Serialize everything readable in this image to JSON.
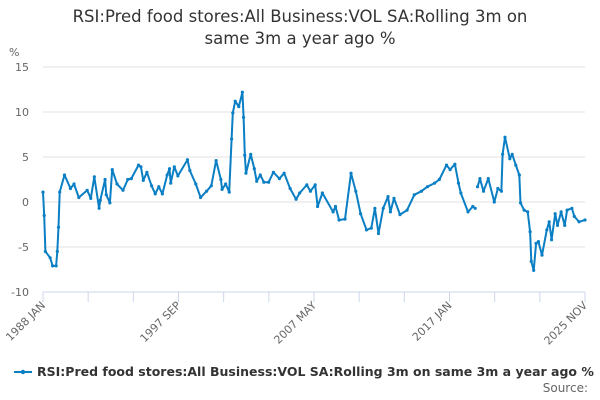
{
  "chart_data": {
    "type": "line",
    "title": "RSI:Pred food stores:All Business:VOL SA:Rolling 3m on same 3m a year ago %",
    "title_lines": [
      "RSI:Pred food stores:All Business:VOL SA:Rolling 3m on",
      "same 3m a year ago %"
    ],
    "ylabel": "%",
    "xlabel": "",
    "ylim": [
      -10,
      15
    ],
    "yticks": [
      -10,
      -5,
      0,
      5,
      10,
      15
    ],
    "xlim": [
      "1988-01",
      "2025-11"
    ],
    "xtick_labels": [
      "1988 JAN",
      "1997 SEP",
      "2007 MAY",
      "2017 JAN",
      "2025 NOV"
    ],
    "grid": true,
    "legend_position": "bottom",
    "color": "#0a7fc4",
    "series": [
      {
        "name": "RSI:Pred food stores:All Business:VOL SA:Rolling 3m on same 3m a year ago %",
        "points": [
          [
            "1988-01",
            1.1
          ],
          [
            "1988-02",
            -1.5
          ],
          [
            "1988-03",
            -5.5
          ],
          [
            "1988-07",
            -6.2
          ],
          [
            "1988-09",
            -7.1
          ],
          [
            "1988-12",
            -7.1
          ],
          [
            "1989-01",
            -5.5
          ],
          [
            "1989-02",
            -2.8
          ],
          [
            "1989-03",
            1.1
          ],
          [
            "1989-07",
            3.0
          ],
          [
            "1989-12",
            1.5
          ],
          [
            "1990-03",
            2.0
          ],
          [
            "1990-07",
            0.5
          ],
          [
            "1991-02",
            1.3
          ],
          [
            "1991-05",
            0.4
          ],
          [
            "1991-08",
            2.8
          ],
          [
            "1991-12",
            -0.7
          ],
          [
            "1992-01",
            0.2
          ],
          [
            "1992-05",
            2.5
          ],
          [
            "1992-06",
            0.8
          ],
          [
            "1992-09",
            -0.1
          ],
          [
            "1992-11",
            3.6
          ],
          [
            "1993-03",
            2.0
          ],
          [
            "1993-08",
            1.3
          ],
          [
            "1993-12",
            2.5
          ],
          [
            "1994-03",
            2.6
          ],
          [
            "1994-09",
            4.1
          ],
          [
            "1994-11",
            3.9
          ],
          [
            "1995-01",
            2.4
          ],
          [
            "1995-04",
            3.3
          ],
          [
            "1995-08",
            1.8
          ],
          [
            "1995-11",
            0.9
          ],
          [
            "1996-02",
            1.7
          ],
          [
            "1996-05",
            0.9
          ],
          [
            "1996-09",
            3.0
          ],
          [
            "1996-11",
            3.7
          ],
          [
            "1996-12",
            2.1
          ],
          [
            "1997-03",
            3.9
          ],
          [
            "1997-06",
            2.9
          ],
          [
            "1998-02",
            4.7
          ],
          [
            "1998-04",
            3.5
          ],
          [
            "1998-09",
            2.0
          ],
          [
            "1999-01",
            0.5
          ],
          [
            "1999-06",
            1.2
          ],
          [
            "1999-10",
            1.8
          ],
          [
            "2000-02",
            4.6
          ],
          [
            "2000-06",
            2.5
          ],
          [
            "2000-07",
            1.4
          ],
          [
            "2000-10",
            2.0
          ],
          [
            "2001-01",
            1.1
          ],
          [
            "2001-03",
            7.0
          ],
          [
            "2001-04",
            9.9
          ],
          [
            "2001-06",
            11.2
          ],
          [
            "2001-09",
            10.6
          ],
          [
            "2001-12",
            12.2
          ],
          [
            "2002-01",
            9.4
          ],
          [
            "2002-02",
            5.2
          ],
          [
            "2002-03",
            3.2
          ],
          [
            "2002-07",
            5.3
          ],
          [
            "2002-10",
            3.7
          ],
          [
            "2002-12",
            2.3
          ],
          [
            "2003-03",
            3.0
          ],
          [
            "2003-06",
            2.2
          ],
          [
            "2003-10",
            2.2
          ],
          [
            "2004-02",
            3.3
          ],
          [
            "2004-07",
            2.6
          ],
          [
            "2004-11",
            3.2
          ],
          [
            "2005-04",
            1.5
          ],
          [
            "2005-09",
            0.3
          ],
          [
            "2005-12",
            1.0
          ],
          [
            "2006-06",
            1.9
          ],
          [
            "2006-09",
            1.2
          ],
          [
            "2007-01",
            1.9
          ],
          [
            "2007-03",
            -0.5
          ],
          [
            "2007-07",
            1.0
          ],
          [
            "2008-04",
            -1.1
          ],
          [
            "2008-06",
            -0.5
          ],
          [
            "2008-09",
            -2.0
          ],
          [
            "2009-02",
            -1.9
          ],
          [
            "2009-07",
            3.2
          ],
          [
            "2009-11",
            1.2
          ],
          [
            "2010-03",
            -1.3
          ],
          [
            "2010-08",
            -3.1
          ],
          [
            "2010-12",
            -2.9
          ],
          [
            "2011-03",
            -0.7
          ],
          [
            "2011-06",
            -3.5
          ],
          [
            "2011-10",
            -0.7
          ],
          [
            "2012-02",
            0.6
          ],
          [
            "2012-04",
            -1.1
          ],
          [
            "2012-07",
            0.4
          ],
          [
            "2012-12",
            -1.4
          ],
          [
            "2013-06",
            -0.9
          ],
          [
            "2013-12",
            0.8
          ],
          [
            "2014-06",
            1.2
          ],
          [
            "2014-11",
            1.7
          ],
          [
            "2015-05",
            2.1
          ],
          [
            "2015-09",
            2.5
          ],
          [
            "2016-03",
            4.1
          ],
          [
            "2016-06",
            3.6
          ],
          [
            "2016-10",
            4.2
          ],
          [
            "2017-01",
            2.1
          ],
          [
            "2017-03",
            1.0
          ],
          [
            "2017-09",
            -1.1
          ],
          [
            "2018-01",
            -0.5
          ],
          [
            "2018-03",
            -0.7
          ],
          [
            "2018-04",
            null
          ],
          [
            "2018-05",
            1.7
          ],
          [
            "2018-07",
            2.6
          ],
          [
            "2018-10",
            1.2
          ],
          [
            "2019-02",
            2.6
          ],
          [
            "2019-07",
            0.0
          ],
          [
            "2019-10",
            1.5
          ],
          [
            "2020-01",
            1.2
          ],
          [
            "2020-02",
            5.3
          ],
          [
            "2020-04",
            7.2
          ],
          [
            "2020-08",
            4.8
          ],
          [
            "2020-10",
            5.3
          ],
          [
            "2021-01",
            4.1
          ],
          [
            "2021-04",
            3.0
          ],
          [
            "2021-05",
            -0.1
          ],
          [
            "2021-08",
            -0.9
          ],
          [
            "2021-11",
            -1.1
          ],
          [
            "2022-01",
            -3.3
          ],
          [
            "2022-02",
            -6.6
          ],
          [
            "2022-04",
            -7.6
          ],
          [
            "2022-06",
            -4.6
          ],
          [
            "2022-08",
            -4.4
          ],
          [
            "2022-11",
            -5.9
          ],
          [
            "2023-03",
            -3.1
          ],
          [
            "2023-05",
            -2.2
          ],
          [
            "2023-07",
            -4.2
          ],
          [
            "2023-10",
            -1.3
          ],
          [
            "2023-12",
            -2.6
          ],
          [
            "2024-03",
            -1.1
          ],
          [
            "2024-06",
            -2.6
          ],
          [
            "2024-08",
            -0.9
          ],
          [
            "2024-12",
            -0.7
          ],
          [
            "2025-02",
            -1.6
          ],
          [
            "2025-06",
            -2.2
          ],
          [
            "2025-11",
            -2.0
          ]
        ]
      }
    ]
  },
  "legend": {
    "label": "RSI:Pred food stores:All Business:VOL SA:Rolling 3m on same 3m a year ago %"
  },
  "source": {
    "label": "Source:"
  }
}
